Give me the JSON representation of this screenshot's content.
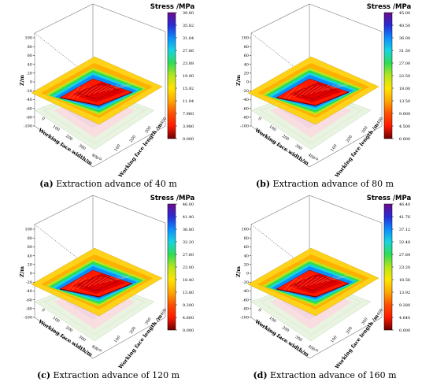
{
  "chart_data": [
    {
      "type": "heatmap",
      "panel_label": "(a)",
      "caption": "Extraction advance of 40 m",
      "colorbar_title": "Stress  /MPa",
      "colorbar_ticks": [
        "39.80",
        "35.82",
        "31.84",
        "27.86",
        "23.88",
        "19.90",
        "15.92",
        "11.94",
        "7.960",
        "3.980",
        "0.000"
      ],
      "colorbar_range": [
        0,
        39.8
      ],
      "z_axis_label": "Z/m",
      "z_ticks": [
        "100",
        "80",
        "60",
        "40",
        "20",
        "0",
        "-20",
        "-40",
        "-60",
        "-80",
        "-100"
      ],
      "x_axis_label": "Working face width/m",
      "x_ticks": [
        "0",
        "100",
        "200",
        "300",
        "400"
      ],
      "y_axis_label": "Working face length /m",
      "y_ticks": [
        "0",
        "100",
        "200",
        "300",
        "400"
      ]
    },
    {
      "type": "heatmap",
      "panel_label": "(b)",
      "caption": "Extraction advance of 80 m",
      "colorbar_title": "Stress /MPa",
      "colorbar_ticks": [
        "45.00",
        "40.50",
        "36.00",
        "31.50",
        "27.00",
        "22.50",
        "18.00",
        "13.50",
        "9.000",
        "4.500",
        "0.000"
      ],
      "colorbar_range": [
        0,
        45
      ],
      "z_axis_label": "Z/m",
      "z_ticks": [
        "100",
        "80",
        "60",
        "40",
        "20",
        "0",
        "-20",
        "-40",
        "-60",
        "-80",
        "-100"
      ],
      "x_axis_label": "Working face width/m",
      "x_ticks": [
        "0",
        "100",
        "200",
        "300",
        "400"
      ],
      "y_axis_label": "Working face length /m",
      "y_ticks": [
        "0",
        "100",
        "200",
        "300",
        "400"
      ]
    },
    {
      "type": "heatmap",
      "panel_label": "(c)",
      "caption": "Extraction advance of 120 m",
      "colorbar_title": "Stress /MPa",
      "colorbar_ticks": [
        "46.00",
        "41.40",
        "36.80",
        "32.20",
        "27.60",
        "23.00",
        "18.40",
        "13.80",
        "9.200",
        "4.600",
        "0.000"
      ],
      "colorbar_range": [
        0,
        46
      ],
      "z_axis_label": "Z/m",
      "z_ticks": [
        "100",
        "80",
        "60",
        "40",
        "20",
        "0",
        "-20",
        "-40",
        "-60",
        "-80",
        "-100"
      ],
      "x_axis_label": "Working face width/m",
      "x_ticks": [
        "0",
        "100",
        "200",
        "300",
        "400"
      ],
      "y_axis_label": "Working face length /m",
      "y_ticks": [
        "0",
        "100",
        "200",
        "300",
        "400"
      ]
    },
    {
      "type": "heatmap",
      "panel_label": "(d)",
      "caption": "Extraction advance of 160 m",
      "colorbar_title": "Stress /MPa",
      "colorbar_ticks": [
        "46.40",
        "41.76",
        "37.12",
        "32.48",
        "27.84",
        "23.20",
        "18.56",
        "13.92",
        "9.280",
        "4.640",
        "0.000"
      ],
      "colorbar_range": [
        0,
        46.4
      ],
      "z_axis_label": "Z/m",
      "z_ticks": [
        "100",
        "80",
        "60",
        "40",
        "20",
        "0",
        "-20",
        "-40",
        "-60",
        "-80",
        "-100"
      ],
      "x_axis_label": "Working face width/m",
      "x_ticks": [
        "0",
        "100",
        "200",
        "300",
        "400"
      ],
      "y_axis_label": "Working face length /m",
      "y_ticks": [
        "0",
        "100",
        "200",
        "300",
        "400"
      ]
    }
  ],
  "colors": {
    "colormap": [
      "#6a0c8c",
      "#2a2ad6",
      "#0a8cff",
      "#18d4e0",
      "#2edc56",
      "#b4e61c",
      "#ffe400",
      "#ffa800",
      "#ff5000",
      "#ff1a00",
      "#6e0000"
    ]
  }
}
